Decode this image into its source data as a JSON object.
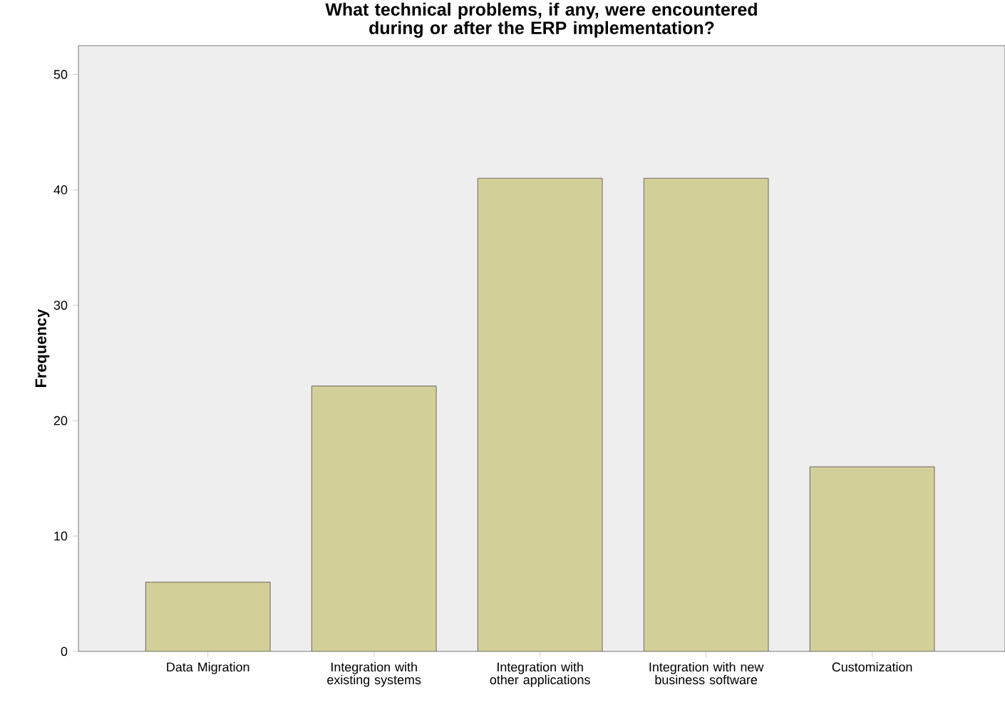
{
  "chart_data": {
    "type": "bar",
    "title": "What technical problems, if any, were encountered during or after the ERP implementation?",
    "ylabel": "Frequency",
    "categories": [
      "Data Migration",
      "Integration with existing systems",
      "Integration with other applications",
      "Integration with new business software",
      "Customization"
    ],
    "values": [
      6,
      23,
      41,
      41,
      16
    ],
    "color": "#d3cf98",
    "ylim": [
      0,
      52.5
    ],
    "yticks": [
      0,
      10,
      20,
      30,
      40,
      50
    ]
  }
}
